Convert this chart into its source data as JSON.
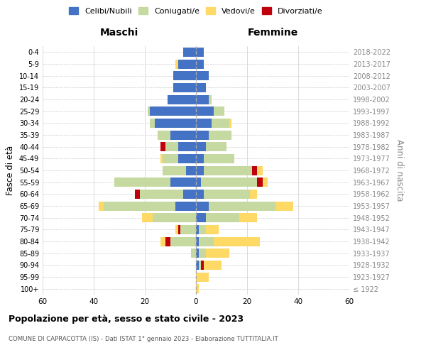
{
  "age_groups": [
    "100+",
    "95-99",
    "90-94",
    "85-89",
    "80-84",
    "75-79",
    "70-74",
    "65-69",
    "60-64",
    "55-59",
    "50-54",
    "45-49",
    "40-44",
    "35-39",
    "30-34",
    "25-29",
    "20-24",
    "15-19",
    "10-14",
    "5-9",
    "0-4"
  ],
  "birth_years": [
    "≤ 1922",
    "1923-1927",
    "1928-1932",
    "1933-1937",
    "1938-1942",
    "1943-1947",
    "1948-1952",
    "1953-1957",
    "1958-1962",
    "1963-1967",
    "1968-1972",
    "1973-1977",
    "1978-1982",
    "1983-1987",
    "1988-1992",
    "1993-1997",
    "1998-2002",
    "2003-2007",
    "2008-2012",
    "2013-2017",
    "2018-2022"
  ],
  "male": {
    "celibi": [
      0,
      0,
      0,
      0,
      0,
      0,
      0,
      8,
      5,
      10,
      4,
      7,
      7,
      10,
      16,
      18,
      11,
      9,
      9,
      7,
      5
    ],
    "coniugati": [
      0,
      0,
      0,
      2,
      10,
      6,
      17,
      28,
      17,
      22,
      9,
      6,
      5,
      5,
      2,
      1,
      0,
      0,
      0,
      0,
      0
    ],
    "vedovi": [
      0,
      0,
      0,
      0,
      2,
      1,
      4,
      2,
      0,
      0,
      0,
      1,
      0,
      0,
      0,
      0,
      0,
      0,
      0,
      1,
      0
    ],
    "divorziati": [
      0,
      0,
      0,
      0,
      2,
      1,
      0,
      0,
      2,
      0,
      0,
      0,
      2,
      0,
      0,
      0,
      0,
      0,
      0,
      0,
      0
    ]
  },
  "female": {
    "nubili": [
      0,
      0,
      1,
      1,
      1,
      1,
      4,
      5,
      3,
      2,
      3,
      3,
      4,
      5,
      6,
      7,
      5,
      4,
      5,
      3,
      3
    ],
    "coniugate": [
      0,
      0,
      1,
      3,
      6,
      3,
      13,
      26,
      18,
      22,
      19,
      12,
      8,
      9,
      7,
      4,
      1,
      0,
      0,
      0,
      0
    ],
    "vedove": [
      1,
      5,
      7,
      9,
      18,
      5,
      7,
      7,
      3,
      2,
      2,
      0,
      0,
      0,
      1,
      0,
      0,
      0,
      0,
      0,
      0
    ],
    "divorziate": [
      0,
      0,
      1,
      0,
      0,
      0,
      0,
      0,
      0,
      2,
      2,
      0,
      0,
      0,
      0,
      0,
      0,
      0,
      0,
      0,
      0
    ]
  },
  "colors": {
    "celibi": "#4472C4",
    "coniugati": "#C5D9A0",
    "vedovi": "#FFD966",
    "divorziati": "#C0000C"
  },
  "xlim": 60,
  "title": "Popolazione per età, sesso e stato civile - 2023",
  "subtitle": "COMUNE DI CAPRACOTTA (IS) - Dati ISTAT 1° gennaio 2023 - Elaborazione TUTTITALIA.IT",
  "ylabel_left": "Fasce di età",
  "ylabel_right": "Anni di nascita"
}
